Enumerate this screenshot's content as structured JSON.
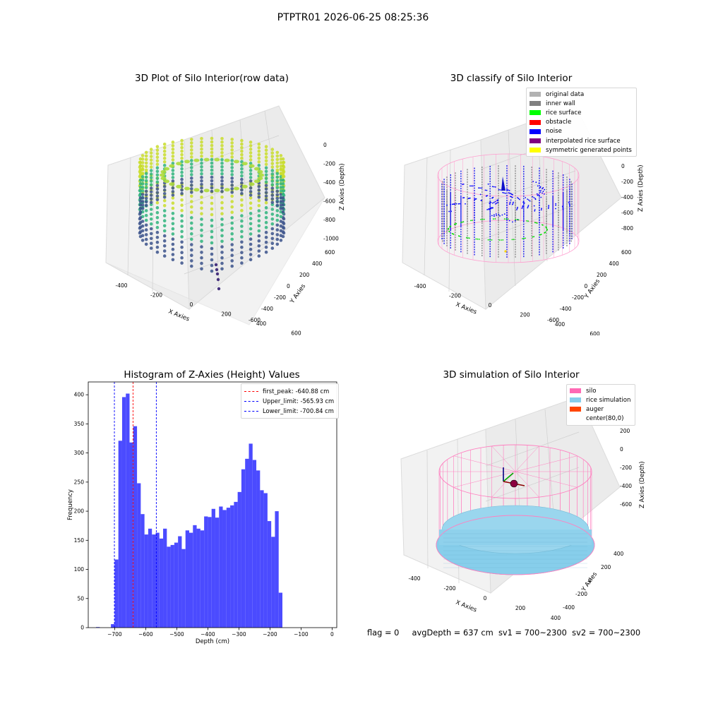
{
  "suptitle": "PTPTR01 2026-06-25 08:25:36",
  "panels": {
    "raw": {
      "title": "3D Plot of Silo Interior(row data)",
      "x_label": "X Axies",
      "y_label": "Y Axies",
      "z_label": "Z Axies (Depth)",
      "x_ticks": [
        "-400",
        "-200",
        "0",
        "200",
        "400",
        "600"
      ],
      "y_ticks": [
        "-600",
        "-400",
        "-200",
        "0",
        "200",
        "400",
        "600"
      ],
      "z_ticks": [
        "0",
        "-200",
        "-400",
        "-600",
        "-800",
        "-1000"
      ]
    },
    "classify": {
      "title": "3D classify of Silo Interior",
      "x_label": "X Axies",
      "y_label": "Y Axies",
      "z_label": "Z Axies (Depth)",
      "x_ticks": [
        "-400",
        "-200",
        "0",
        "200",
        "400",
        "600"
      ],
      "y_ticks": [
        "-600",
        "-400",
        "-200",
        "0",
        "200",
        "400",
        "600"
      ],
      "z_ticks": [
        "200",
        "0",
        "-200",
        "-400",
        "-600",
        "-800"
      ],
      "legend": [
        {
          "label": "original data",
          "color": "#b2b2b2"
        },
        {
          "label": "inner wall",
          "color": "#808080"
        },
        {
          "label": "rice surface",
          "color": "#00ff00"
        },
        {
          "label": "obstacle",
          "color": "#ff0000"
        },
        {
          "label": "noise",
          "color": "#0000ff"
        },
        {
          "label": "interpolated rice surface",
          "color": "#800080"
        },
        {
          "label": "symmetric generated points",
          "color": "#ffff00"
        }
      ]
    },
    "simulation": {
      "title": "3D simulation of Silo Interior",
      "x_label": "X Axies",
      "y_label": "Y Axies",
      "z_label": "Z Axies (Depth)",
      "x_ticks": [
        "-400",
        "-200",
        "0",
        "200",
        "400",
        "600"
      ],
      "y_ticks": [
        "-400",
        "-200",
        "0",
        "200",
        "400"
      ],
      "z_ticks": [
        "200",
        "0",
        "-200",
        "-400",
        "-600"
      ],
      "legend": [
        {
          "label": "silo",
          "color": "#ff69b4"
        },
        {
          "label": "rice simulation",
          "color": "#87ceeb"
        },
        {
          "label": "auger",
          "color": "#ff4500"
        },
        {
          "label": "center(80,0)",
          "color": ""
        }
      ]
    }
  },
  "chart_data": {
    "type": "bar",
    "title": "Histogram of Z-Axies (Height) Values",
    "xlabel": "Depth (cm)",
    "ylabel": "Frequency",
    "xlim": [
      -785,
      15
    ],
    "ylim": [
      0,
      422
    ],
    "bar_color": "#4b4bff",
    "bin_width": 12,
    "x_ticks": [
      -700,
      -600,
      -500,
      -400,
      -300,
      -200,
      -100,
      0
    ],
    "x_tick_labels": [
      "−700",
      "−600",
      "−500",
      "−400",
      "−300",
      "−200",
      "−100",
      "0"
    ],
    "y_ticks": [
      0,
      50,
      100,
      150,
      200,
      250,
      300,
      350,
      400
    ],
    "bins": [
      {
        "x0": -760,
        "v": 1
      },
      {
        "x0": -748,
        "v": 0
      },
      {
        "x0": -736,
        "v": 0
      },
      {
        "x0": -724,
        "v": 0
      },
      {
        "x0": -712,
        "v": 6
      },
      {
        "x0": -700,
        "v": 117
      },
      {
        "x0": -688,
        "v": 321
      },
      {
        "x0": -676,
        "v": 396
      },
      {
        "x0": -664,
        "v": 402
      },
      {
        "x0": -652,
        "v": 318
      },
      {
        "x0": -640,
        "v": 346
      },
      {
        "x0": -628,
        "v": 248
      },
      {
        "x0": -616,
        "v": 195
      },
      {
        "x0": -604,
        "v": 160
      },
      {
        "x0": -592,
        "v": 170
      },
      {
        "x0": -580,
        "v": 160
      },
      {
        "x0": -568,
        "v": 163
      },
      {
        "x0": -556,
        "v": 153
      },
      {
        "x0": -544,
        "v": 170
      },
      {
        "x0": -532,
        "v": 139
      },
      {
        "x0": -520,
        "v": 142
      },
      {
        "x0": -508,
        "v": 146
      },
      {
        "x0": -496,
        "v": 157
      },
      {
        "x0": -484,
        "v": 135
      },
      {
        "x0": -472,
        "v": 167
      },
      {
        "x0": -460,
        "v": 163
      },
      {
        "x0": -448,
        "v": 176
      },
      {
        "x0": -436,
        "v": 170
      },
      {
        "x0": -424,
        "v": 167
      },
      {
        "x0": -412,
        "v": 191
      },
      {
        "x0": -400,
        "v": 190
      },
      {
        "x0": -388,
        "v": 204
      },
      {
        "x0": -376,
        "v": 189
      },
      {
        "x0": -364,
        "v": 208
      },
      {
        "x0": -352,
        "v": 202
      },
      {
        "x0": -340,
        "v": 206
      },
      {
        "x0": -328,
        "v": 210
      },
      {
        "x0": -316,
        "v": 216
      },
      {
        "x0": -304,
        "v": 233
      },
      {
        "x0": -292,
        "v": 272
      },
      {
        "x0": -280,
        "v": 290
      },
      {
        "x0": -268,
        "v": 316
      },
      {
        "x0": -256,
        "v": 288
      },
      {
        "x0": -244,
        "v": 270
      },
      {
        "x0": -232,
        "v": 236
      },
      {
        "x0": -220,
        "v": 231
      },
      {
        "x0": -208,
        "v": 183
      },
      {
        "x0": -196,
        "v": 156
      },
      {
        "x0": -184,
        "v": 200
      },
      {
        "x0": -172,
        "v": 60
      }
    ],
    "vlines": [
      {
        "label": "first_peak: -640.88 cm",
        "x": -640.88,
        "color": "#ff0000"
      },
      {
        "label": "Upper_limit: -565.93 cm",
        "x": -565.93,
        "color": "#0000ff"
      },
      {
        "label": "Lower_limit: -700.84 cm",
        "x": -700.84,
        "color": "#0000ff"
      }
    ],
    "legend_position": "top-right"
  },
  "footer": {
    "flag": "flag = 0",
    "avg_depth": "avgDepth = 637 cm",
    "sv1": "sv1 = 700~2300",
    "sv2": "sv2 = 700~2300"
  }
}
